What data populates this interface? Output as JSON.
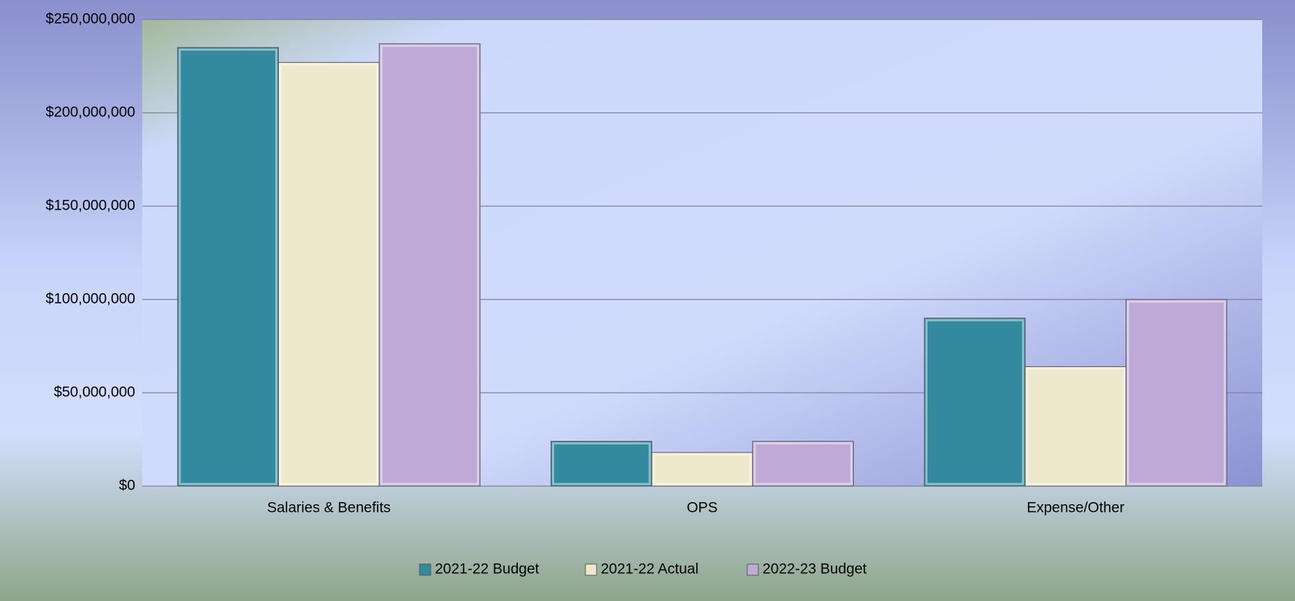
{
  "chart_data": {
    "type": "bar",
    "categories": [
      "Salaries & Benefits",
      "OPS",
      "Expense/Other"
    ],
    "series": [
      {
        "name": "2021-22 Budget",
        "color": "#338a9f",
        "values": [
          235000000,
          24000000,
          90000000
        ]
      },
      {
        "name": "2021-22 Actual",
        "color": "#eee8cc",
        "values": [
          227000000,
          18000000,
          64000000
        ]
      },
      {
        "name": "2022-23 Budget",
        "color": "#bfaad7",
        "values": [
          237000000,
          24000000,
          100000000
        ]
      }
    ],
    "ylim": [
      0,
      250000000
    ],
    "yticks": [
      {
        "value": 0,
        "label": "$0"
      },
      {
        "value": 50000000,
        "label": "$50,000,000"
      },
      {
        "value": 100000000,
        "label": "$100,000,000"
      },
      {
        "value": 150000000,
        "label": "$150,000,000"
      },
      {
        "value": 200000000,
        "label": "$200,000,000"
      },
      {
        "value": 250000000,
        "label": "$250,000,000"
      }
    ],
    "grid": true,
    "legend": "bottom"
  }
}
